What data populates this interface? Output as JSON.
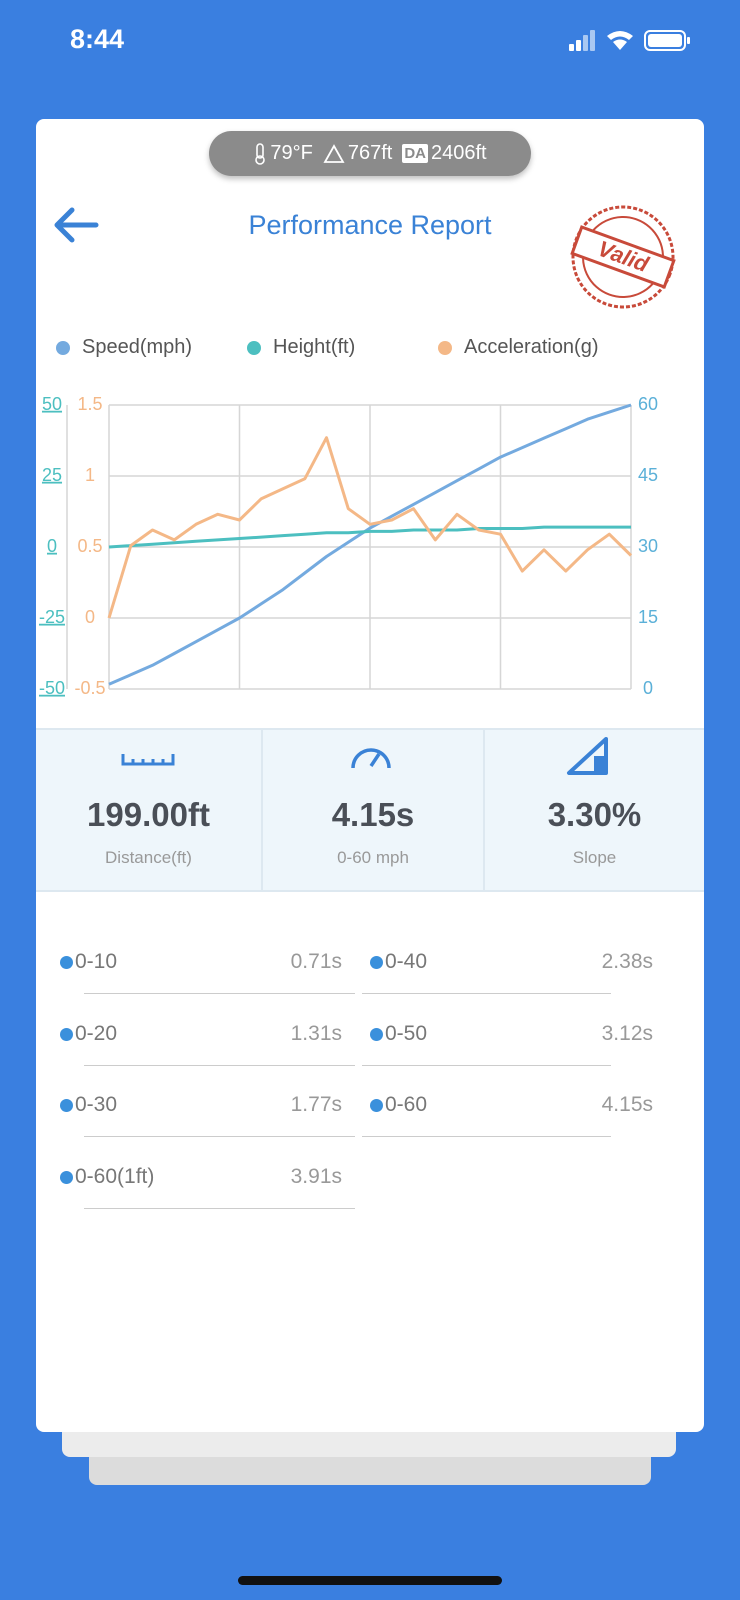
{
  "status": {
    "time": "8:44"
  },
  "conditions": {
    "temperature": "79°F",
    "altitude": "767ft",
    "da_label": "DA",
    "density_altitude": "2406ft"
  },
  "header": {
    "title": "Performance Report",
    "stamp": "Valid"
  },
  "chart_data": {
    "type": "line",
    "series": [
      {
        "name": "Speed(mph)",
        "color": "#74aadf",
        "axis": "y2",
        "values": [
          1,
          3,
          5,
          7.5,
          10,
          12.5,
          15,
          18,
          21,
          24.5,
          28,
          31,
          34,
          36.5,
          39,
          41.5,
          44,
          46.5,
          49,
          51,
          53,
          55,
          57,
          58.5,
          60
        ]
      },
      {
        "name": "Height(ft)",
        "color": "#4cbfc0",
        "values": [
          0,
          0.5,
          1,
          1.5,
          2,
          2.5,
          3,
          3.5,
          4,
          4.5,
          5,
          5,
          5.5,
          5.5,
          6,
          6,
          6,
          6.5,
          6.5,
          6.5,
          7,
          7,
          7,
          7,
          7
        ]
      },
      {
        "name": "Acceleration(g)",
        "color": "#f4b887",
        "axis": "y3",
        "values": [
          0,
          0.51,
          0.62,
          0.55,
          0.66,
          0.73,
          0.69,
          0.84,
          0.91,
          0.98,
          1.27,
          0.77,
          0.66,
          0.69,
          0.77,
          0.55,
          0.73,
          0.62,
          0.59,
          0.33,
          0.48,
          0.33,
          0.48,
          0.59,
          0.44
        ]
      }
    ],
    "ylim": [
      -50,
      50
    ],
    "yticks": [
      -50,
      -25,
      0,
      25,
      50
    ],
    "y2lim": [
      0,
      60
    ],
    "y2ticks": [
      0,
      15,
      30,
      45,
      60
    ],
    "y3lim": [
      -0.5,
      1.5
    ],
    "y3ticks": [
      -0.5,
      0,
      0.5,
      1,
      1.5
    ],
    "grid": true
  },
  "stats": [
    {
      "value": "199.00ft",
      "caption": "Distance(ft)"
    },
    {
      "value": "4.15s",
      "caption": "0-60 mph"
    },
    {
      "value": "3.30%",
      "caption": "Slope"
    }
  ],
  "splits": [
    {
      "label": "0-10",
      "time": "0.71s"
    },
    {
      "label": "0-40",
      "time": "2.38s"
    },
    {
      "label": "0-20",
      "time": "1.31s"
    },
    {
      "label": "0-50",
      "time": "3.12s"
    },
    {
      "label": "0-30",
      "time": "1.77s"
    },
    {
      "label": "0-60",
      "time": "4.15s"
    },
    {
      "label": "0-60(1ft)",
      "time": "3.91s"
    }
  ]
}
